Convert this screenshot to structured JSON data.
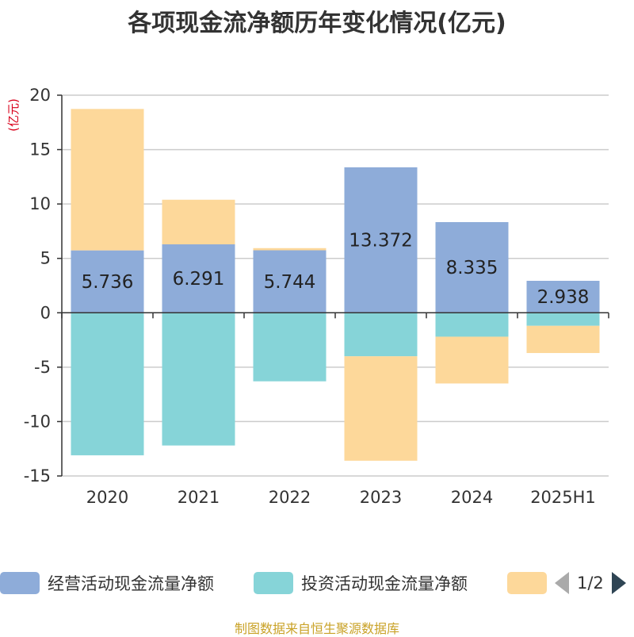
{
  "chart_data": {
    "type": "bar",
    "title": "各项现金流净额历年变化情况(亿元)",
    "ylabel": "(亿元)",
    "categories": [
      "2020",
      "2021",
      "2022",
      "2023",
      "2024",
      "2025H1"
    ],
    "ylim": [
      -15,
      20
    ],
    "yticks": [
      20,
      15,
      10,
      5,
      0,
      -5,
      -10,
      -15
    ],
    "stacked": true,
    "grid": true,
    "series": [
      {
        "name": "经营活动现金流量净额",
        "color": "#8eacd9",
        "values": [
          5.736,
          6.291,
          5.744,
          13.372,
          8.335,
          2.938
        ],
        "labels": [
          "5.736",
          "6.291",
          "5.744",
          "13.372",
          "8.335",
          "2.938"
        ]
      },
      {
        "name": "投资活动现金流量净额",
        "color": "#86d4d8",
        "values": [
          -13.1,
          -12.2,
          -6.3,
          -4.0,
          -2.2,
          -1.2
        ]
      },
      {
        "name": "",
        "color": "#fdd89a",
        "values": [
          13.0,
          4.1,
          0.2,
          -9.6,
          -4.3,
          -2.5
        ]
      }
    ]
  },
  "legend": {
    "items": [
      "经营活动现金流量净额",
      "投资活动现金流量净额",
      ""
    ],
    "page": "1/2"
  },
  "source": "制图数据来自恒生聚源数据库"
}
